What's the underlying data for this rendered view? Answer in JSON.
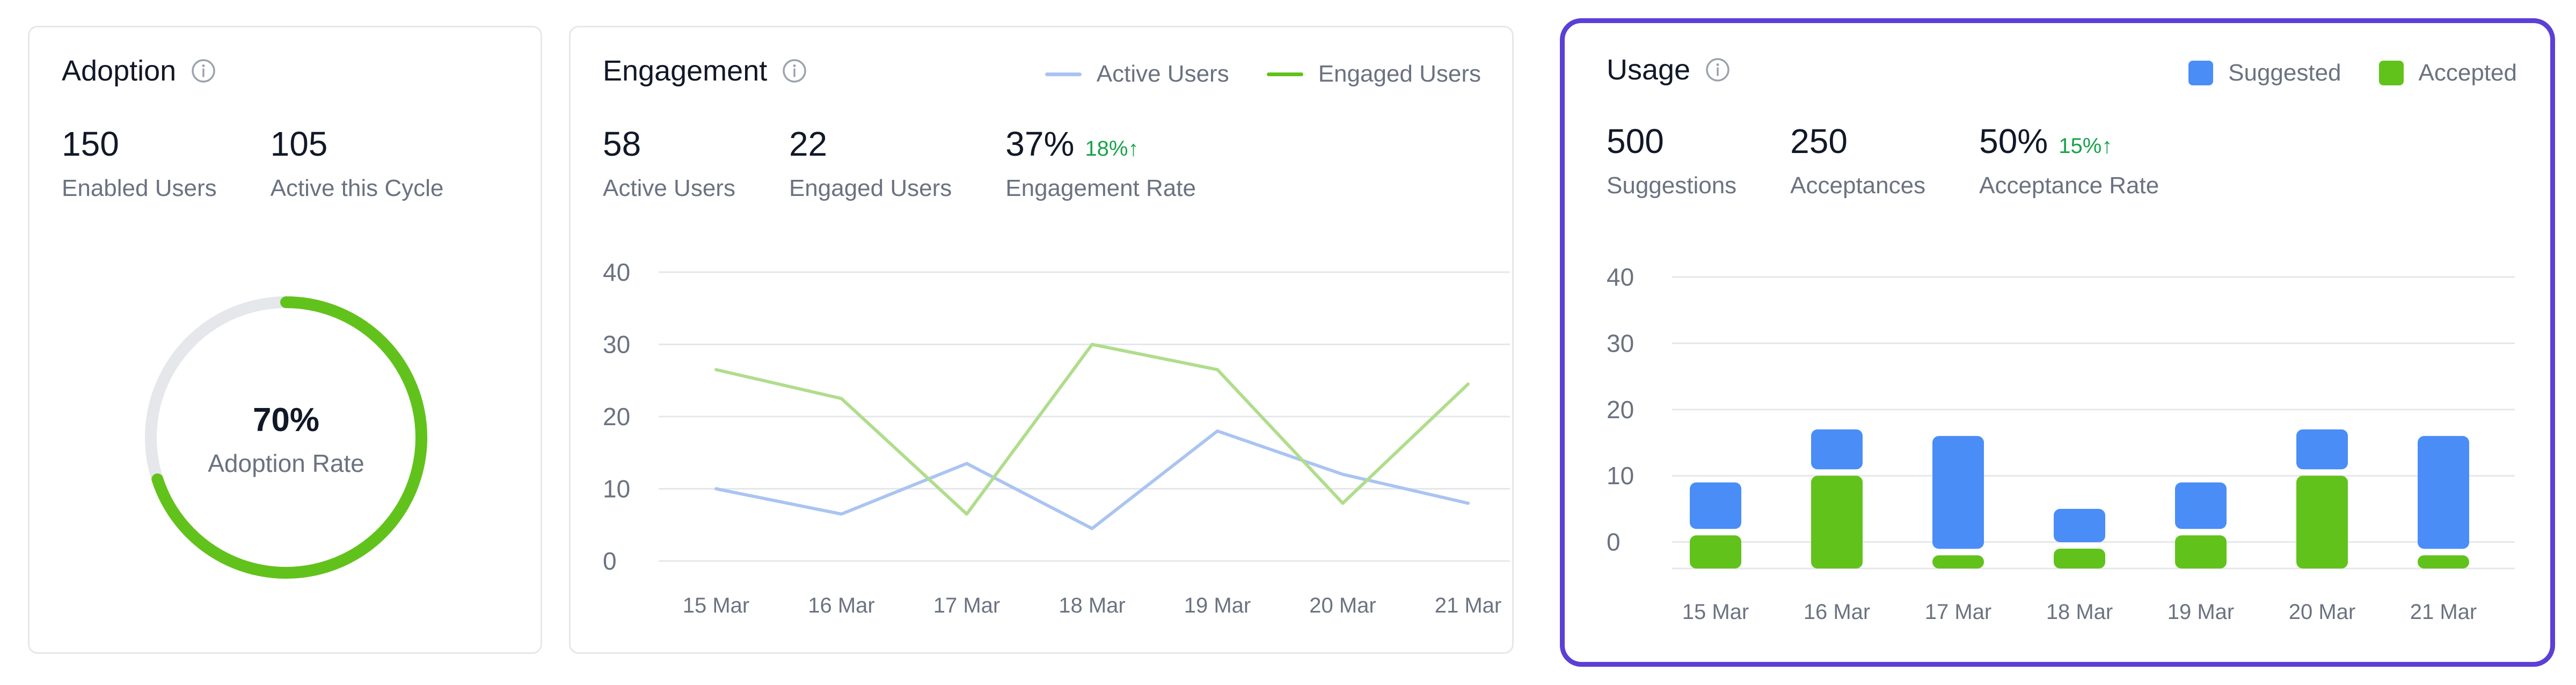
{
  "adoption": {
    "title": "Adoption",
    "stats": [
      {
        "value": "150",
        "label": "Enabled Users"
      },
      {
        "value": "105",
        "label": "Active this Cycle"
      }
    ],
    "donut": {
      "percent_text": "70%",
      "label": "Adoption Rate",
      "fraction": 0.7
    },
    "colors": {
      "fill": "#62c21c",
      "track": "#e5e7eb"
    }
  },
  "engagement": {
    "title": "Engagement",
    "legend": [
      {
        "label": "Active Users",
        "color": "#aac4f2"
      },
      {
        "label": "Engaged Users",
        "color": "#b0dd8c"
      }
    ],
    "stats": [
      {
        "value": "58",
        "label": "Active Users"
      },
      {
        "value": "22",
        "label": "Engaged Users"
      },
      {
        "value": "37%",
        "delta": "18%↑",
        "label": "Engagement Rate"
      }
    ]
  },
  "usage": {
    "title": "Usage",
    "legend": [
      {
        "label": "Suggested",
        "color": "#4b8df7"
      },
      {
        "label": "Accepted",
        "color": "#62c21c"
      }
    ],
    "stats": [
      {
        "value": "500",
        "label": "Suggestions"
      },
      {
        "value": "250",
        "label": "Acceptances"
      },
      {
        "value": "50%",
        "delta": "15%↑",
        "label": "Acceptance Rate"
      }
    ]
  },
  "chart_data": [
    {
      "type": "line",
      "categories": [
        "15 Mar",
        "16 Mar",
        "17 Mar",
        "18 Mar",
        "19 Mar",
        "20 Mar",
        "21 Mar"
      ],
      "y_ticks": [
        "0",
        "10",
        "20",
        "30",
        "40"
      ],
      "ylim": [
        0,
        40
      ],
      "grid": true,
      "series": [
        {
          "name": "Active Users",
          "color": "#aac4f2",
          "values": [
            10,
            6.5,
            13.5,
            4.5,
            18,
            12,
            8
          ]
        },
        {
          "name": "Engaged Users",
          "color": "#b0dd8c",
          "values": [
            26.5,
            22.5,
            6.5,
            30,
            26.5,
            8,
            24.5
          ]
        }
      ]
    },
    {
      "type": "bar",
      "stacked": true,
      "categories": [
        "15 Mar",
        "16 Mar",
        "17 Mar",
        "18 Mar",
        "19 Mar",
        "20 Mar",
        "21 Mar"
      ],
      "y_ticks": [
        "0",
        "10",
        "20",
        "30",
        "40"
      ],
      "ylim": [
        -4,
        40
      ],
      "grid": true,
      "series": [
        {
          "name": "Accepted",
          "color": "#62c21c",
          "values": [
            5,
            14,
            2,
            3,
            5,
            14,
            2
          ]
        },
        {
          "name": "Suggested",
          "color": "#4b8df7",
          "values": [
            8,
            7,
            18,
            6,
            8,
            7,
            18
          ]
        }
      ]
    }
  ]
}
